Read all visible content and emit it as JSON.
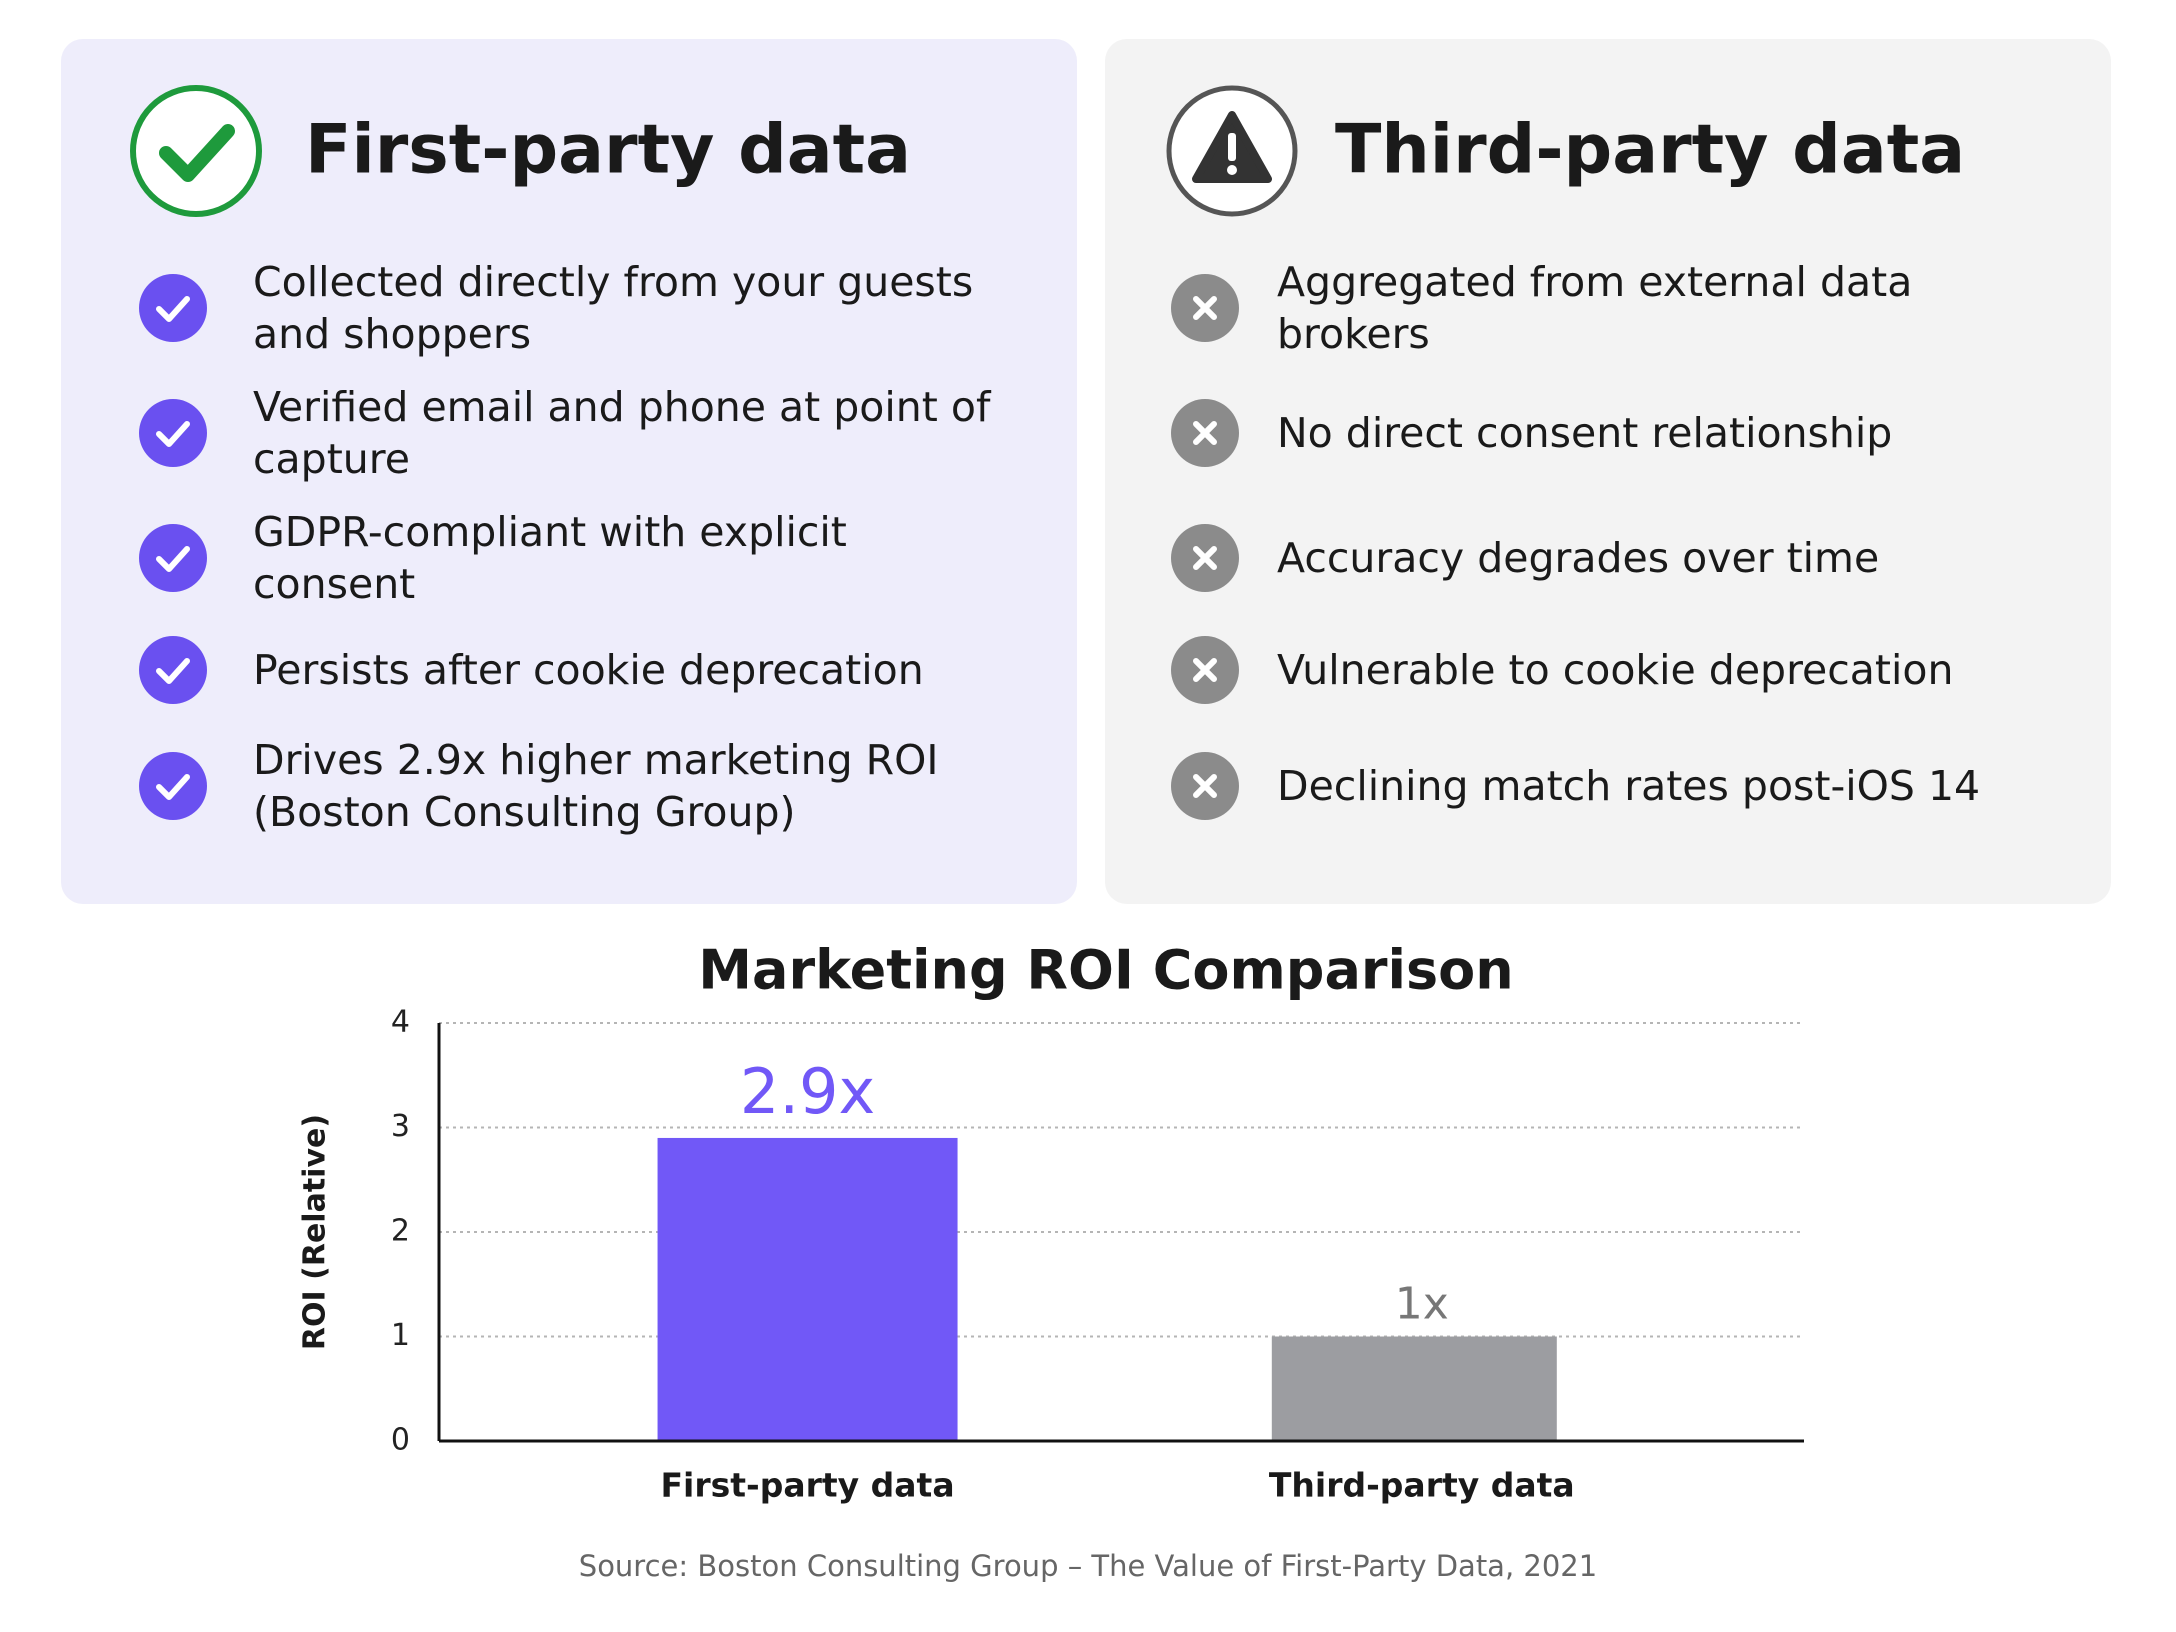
{
  "panels": [
    {
      "title": "First-party data",
      "items": [
        "Collected directly from your guests and shoppers",
        "Verified email and phone at point of capture",
        "GDPR-compliant with explicit consent",
        "Persists after cookie deprecation",
        "Drives 2.9x higher marketing ROI (Boston Consulting Group)"
      ]
    },
    {
      "title": "Third-party data",
      "items": [
        "Aggregated from external data brokers",
        "No direct consent relationship",
        "Accuracy degrades over time",
        "Vulnerable to cookie deprecation",
        "Declining match rates post-iOS 14"
      ]
    }
  ],
  "chart_data": {
    "type": "bar",
    "title": "Marketing ROI Comparison",
    "y_label": "ROI (Relative)",
    "categories": [
      "First-party data",
      "Third-party data"
    ],
    "values": [
      2.9,
      1
    ],
    "value_labels": [
      "2.9x",
      "1x"
    ],
    "colors": [
      "#7158f7",
      "#9c9da1"
    ],
    "ylim": [
      0,
      4
    ],
    "yticks": [
      0,
      1,
      2,
      3,
      4
    ],
    "grid": true
  },
  "source": "Source: Boston Consulting Group – The Value of First-Party Data, 2021"
}
